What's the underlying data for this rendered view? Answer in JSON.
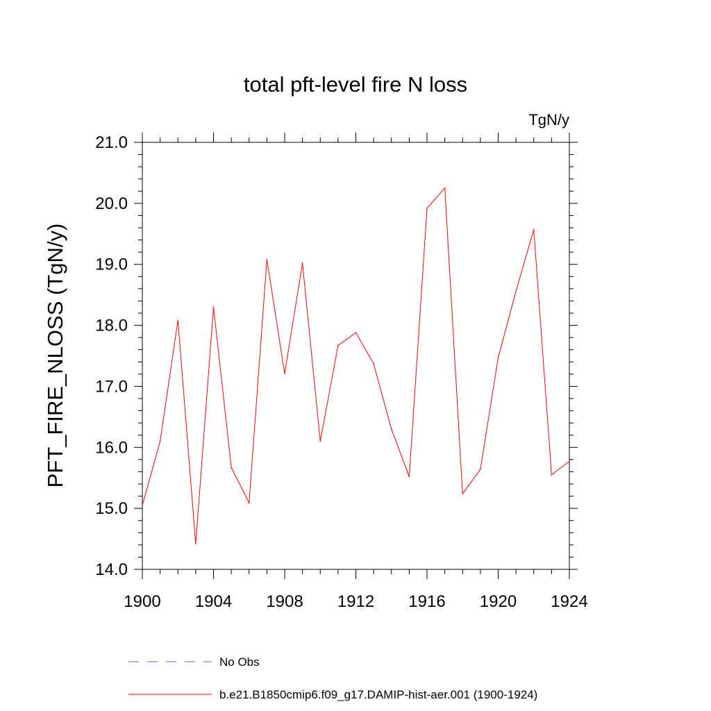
{
  "chart_data": {
    "type": "line",
    "title": "total pft-level fire N loss",
    "units_label": "TgN/y",
    "ylabel": "PFT_FIRE_NLOSS  (TgN/y)",
    "xlabel": "",
    "xlim": [
      1900,
      1924
    ],
    "ylim": [
      14.0,
      21.0
    ],
    "x_ticks": [
      1900,
      1904,
      1908,
      1912,
      1916,
      1920,
      1924
    ],
    "y_ticks": [
      "14.0",
      "15.0",
      "16.0",
      "17.0",
      "18.0",
      "19.0",
      "20.0",
      "21.0"
    ],
    "grid": false,
    "legend_position": "bottom",
    "series": [
      {
        "name": "b.e21.B1850cmip6.f09_g17.DAMIP-hist-aer.001 (1900-1924)",
        "color": "#ff0000",
        "style": "solid",
        "x": [
          1900,
          1901,
          1902,
          1903,
          1904,
          1905,
          1906,
          1907,
          1908,
          1909,
          1910,
          1911,
          1912,
          1913,
          1914,
          1915,
          1916,
          1917,
          1918,
          1919,
          1920,
          1921,
          1922,
          1923,
          1924
        ],
        "values": [
          15.05,
          16.1,
          18.08,
          14.42,
          18.3,
          15.67,
          15.09,
          19.08,
          17.21,
          19.02,
          16.1,
          17.67,
          17.88,
          17.37,
          16.3,
          15.52,
          19.92,
          20.25,
          15.24,
          15.64,
          17.47,
          18.56,
          19.57,
          15.55,
          15.77
        ]
      },
      {
        "name": "No Obs",
        "color": "#6666cc",
        "style": "dashed",
        "x": [],
        "values": []
      }
    ]
  }
}
